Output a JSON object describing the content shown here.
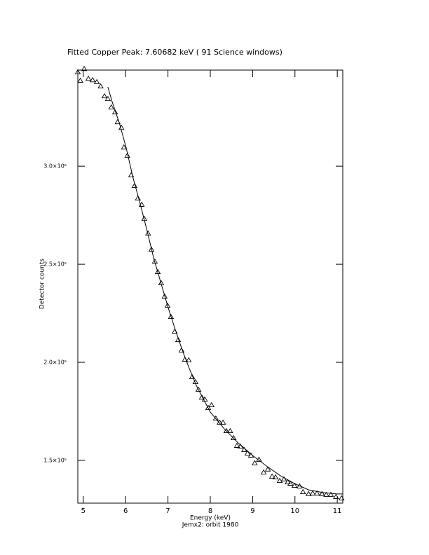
{
  "chart_data": {
    "type": "scatter",
    "title": "Fitted Copper Peak:      7.60682 keV (      91 Science windows)",
    "x_label": "Energy (keV)",
    "subtitle": "Jemx2: orbit 1980",
    "y_label": "Detector counts",
    "xlim": [
      4.87,
      11.13
    ],
    "ylim": [
      128200,
      349000
    ],
    "xticks": [
      5,
      6,
      7,
      8,
      9,
      10,
      11
    ],
    "yticks": [
      {
        "value": 150000,
        "label": "1.5×10⁵"
      },
      {
        "value": 200000,
        "label": "2.0×10⁵"
      },
      {
        "value": 250000,
        "label": "2.5×10⁵"
      },
      {
        "value": 300000,
        "label": "3.0×10⁵"
      }
    ],
    "series": [
      {
        "type": "scatter",
        "marker": "triangle",
        "color": "#000000",
        "x": [
          4.87,
          4.93,
          5.02,
          5.12,
          5.22,
          5.32,
          5.41,
          5.5,
          5.58,
          5.66,
          5.75,
          5.81,
          5.9,
          5.96,
          6.04,
          6.13,
          6.21,
          6.29,
          6.38,
          6.44,
          6.53,
          6.61,
          6.69,
          6.76,
          6.84,
          6.92,
          6.99,
          7.07,
          7.16,
          7.24,
          7.32,
          7.4,
          7.49,
          7.57,
          7.65,
          7.72,
          7.8,
          7.87,
          7.95,
          8.03,
          8.13,
          8.22,
          8.3,
          8.38,
          8.47,
          8.55,
          8.63,
          8.71,
          8.8,
          8.88,
          8.96,
          9.05,
          9.15,
          9.26,
          9.36,
          9.46,
          9.54,
          9.64,
          9.74,
          9.83,
          9.89,
          9.99,
          10.11,
          10.19,
          10.32,
          10.42,
          10.52,
          10.64,
          10.74,
          10.85,
          10.97,
          11.1
        ],
        "values": [
          347900,
          343600,
          349600,
          344600,
          343900,
          342900,
          340700,
          335700,
          334300,
          330000,
          327500,
          322500,
          319600,
          309600,
          305400,
          295400,
          290000,
          283600,
          280400,
          273200,
          265700,
          257500,
          251400,
          246100,
          240400,
          233600,
          228900,
          223200,
          215700,
          211400,
          206100,
          201400,
          201100,
          192500,
          190000,
          186100,
          182100,
          181100,
          176800,
          178200,
          171400,
          169300,
          169300,
          165000,
          165000,
          161400,
          157500,
          157100,
          155400,
          153600,
          152500,
          148600,
          150400,
          143900,
          145400,
          141800,
          141400,
          139600,
          140400,
          138900,
          138200,
          137100,
          136800,
          133900,
          132900,
          133200,
          133200,
          132900,
          132500,
          132500,
          131400,
          130700
        ]
      },
      {
        "type": "line",
        "color": "#000000",
        "x": [
          5.58,
          5.68,
          5.85,
          6.01,
          6.18,
          6.34,
          6.51,
          6.67,
          6.84,
          7.01,
          7.17,
          7.34,
          7.5,
          7.67,
          7.84,
          8.0,
          8.33,
          8.66,
          9.0,
          9.33,
          9.66,
          9.99,
          10.32,
          10.66,
          10.99,
          11.12
        ],
        "values": [
          340400,
          332900,
          322100,
          309600,
          293600,
          281100,
          266800,
          252500,
          240000,
          227500,
          216800,
          206100,
          197100,
          188200,
          181100,
          174600,
          166100,
          158900,
          152500,
          147100,
          142100,
          138200,
          135000,
          133600,
          132900,
          132900
        ]
      }
    ]
  }
}
